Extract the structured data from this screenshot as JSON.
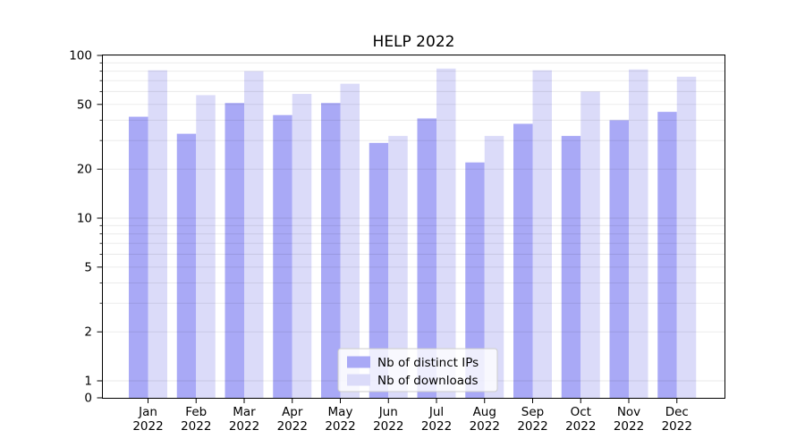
{
  "chart_data": {
    "type": "bar",
    "title": "HELP 2022",
    "yscale": "symlog",
    "ylim": [
      0,
      100
    ],
    "yticks": [
      100,
      50,
      20,
      10,
      5,
      2,
      1,
      0
    ],
    "grid": "horizontal-log-minor-and-major",
    "legend_position": "lower center",
    "categories": [
      {
        "month": "Jan",
        "year": "2022"
      },
      {
        "month": "Feb",
        "year": "2022"
      },
      {
        "month": "Mar",
        "year": "2022"
      },
      {
        "month": "Apr",
        "year": "2022"
      },
      {
        "month": "May",
        "year": "2022"
      },
      {
        "month": "Jun",
        "year": "2022"
      },
      {
        "month": "Jul",
        "year": "2022"
      },
      {
        "month": "Aug",
        "year": "2022"
      },
      {
        "month": "Sep",
        "year": "2022"
      },
      {
        "month": "Oct",
        "year": "2022"
      },
      {
        "month": "Nov",
        "year": "2022"
      },
      {
        "month": "Dec",
        "year": "2022"
      }
    ],
    "series": [
      {
        "name": "Nb of distinct IPs",
        "color": "#a9a9f6",
        "values": [
          42,
          33,
          51,
          43,
          51,
          29,
          41,
          22,
          38,
          32,
          40,
          45
        ]
      },
      {
        "name": "Nb of downloads",
        "color": "#dbdbf9",
        "values": [
          81,
          57,
          80,
          58,
          67,
          32,
          83,
          32,
          81,
          60,
          82,
          74
        ]
      }
    ]
  }
}
